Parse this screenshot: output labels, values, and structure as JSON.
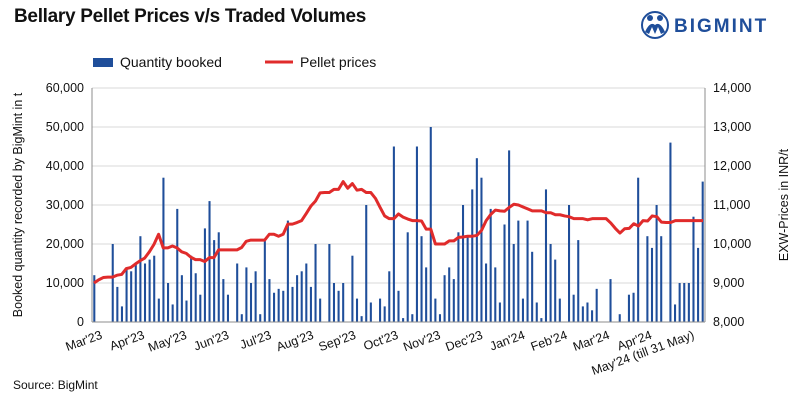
{
  "title": "Bellary Pellet Prices v/s Traded Volumes",
  "source": "Source: BigMint",
  "logo": {
    "text": "BIGMINT",
    "icon": "bigmint-people-globe-icon",
    "color": "#1f4e9a"
  },
  "colors": {
    "bars": "#1f4e9a",
    "line": "#e02b2b",
    "grid": "#d9d9d9",
    "axis": "#8c8c8c"
  },
  "chart_data": {
    "type": "bar+line",
    "grid": true,
    "legend_position": "top-left",
    "left_axis": {
      "label": "Booked quantity recorded by BigMint in t",
      "range": [
        0,
        60000
      ],
      "ticks": [
        "0",
        "10,000",
        "20,000",
        "30,000",
        "40,000",
        "50,000",
        "60,000"
      ]
    },
    "right_axis": {
      "label": "EXW-Prices in INR/t",
      "range": [
        8000,
        14000
      ],
      "ticks": [
        "8,000",
        "9,000",
        "10,000",
        "11,000",
        "12,000",
        "13,000",
        "14,000"
      ]
    },
    "x_labels": [
      "Mar'23",
      "Apr'23",
      "May'23",
      "Jun'23",
      "Jul'23",
      "Aug'23",
      "Sep'23",
      "Oct'23",
      "Nov'23",
      "Dec'23",
      "Jan'24",
      "Feb'24",
      "Mar'24",
      "Apr'24",
      "May'24 (till 31 May)"
    ],
    "series": [
      {
        "name": "Quantity booked",
        "type": "bar",
        "axis": "left",
        "values": [
          12000,
          0,
          0,
          0,
          20000,
          9000,
          4000,
          14000,
          13000,
          15000,
          22000,
          15000,
          16000,
          17000,
          6000,
          37000,
          10000,
          4500,
          29000,
          12000,
          5500,
          17000,
          12500,
          7000,
          24000,
          31000,
          21000,
          23000,
          11000,
          7000,
          0,
          15000,
          2000,
          14000,
          10000,
          13000,
          2000,
          21000,
          11000,
          7500,
          8500,
          8000,
          26000,
          9000,
          12000,
          13000,
          15000,
          9000,
          20000,
          6000,
          0,
          20000,
          10000,
          8000,
          10000,
          0,
          17000,
          6000,
          1500,
          30000,
          5000,
          0,
          6000,
          4000,
          13000,
          45000,
          8000,
          1000,
          23000,
          2000,
          45000,
          22000,
          14000,
          50000,
          6000,
          2000,
          12000,
          14000,
          11000,
          23000,
          30000,
          22000,
          34000,
          42000,
          37000,
          15000,
          29000,
          14000,
          5000,
          25000,
          44000,
          20000,
          26000,
          6000,
          26000,
          18000,
          5000,
          1000,
          34000,
          20000,
          16000,
          6000,
          0,
          30000,
          7000,
          21000,
          4000,
          5000,
          3000,
          8500,
          0,
          0,
          11000,
          0,
          2000,
          0,
          7000,
          7500,
          37000,
          0,
          22000,
          19000,
          30000,
          22000,
          0,
          46000,
          4500,
          10000,
          10000,
          10000,
          27000,
          19000,
          36000
        ],
        "color": "#1f4e9a"
      },
      {
        "name": "Pellet prices",
        "type": "line",
        "axis": "right",
        "values": [
          9000,
          9080,
          9140,
          9150,
          9150,
          9200,
          9220,
          9370,
          9400,
          9490,
          9570,
          9640,
          9800,
          9990,
          10250,
          9900,
          9900,
          9950,
          9900,
          9800,
          9760,
          9660,
          9600,
          9600,
          9550,
          9650,
          9650,
          9850,
          9850,
          9850,
          9850,
          9850,
          9910,
          10070,
          10100,
          10100,
          10100,
          10100,
          10250,
          10250,
          10200,
          10250,
          10510,
          10510,
          10550,
          10600,
          10780,
          10970,
          11100,
          11310,
          11320,
          11320,
          11400,
          11400,
          11600,
          11430,
          11550,
          11380,
          11400,
          11320,
          11320,
          11170,
          10940,
          10720,
          10650,
          10650,
          10770,
          10690,
          10640,
          10600,
          10600,
          10590,
          10380,
          10380,
          10000,
          10000,
          10000,
          10080,
          10080,
          10170,
          10180,
          10200,
          10200,
          10220,
          10350,
          10600,
          10760,
          10870,
          10850,
          10840,
          10940,
          11020,
          11000,
          10950,
          10900,
          10850,
          10850,
          10850,
          10800,
          10800,
          10750,
          10750,
          10720,
          10700,
          10650,
          10650,
          10650,
          10620,
          10650,
          10650,
          10650,
          10650,
          10540,
          10400,
          10280,
          10390,
          10400,
          10520,
          10460,
          10600,
          10590,
          10720,
          10700,
          10560,
          10550,
          10550,
          10600,
          10600,
          10600,
          10600,
          10600,
          10600,
          10600
        ],
        "color": "#e02b2b"
      }
    ]
  }
}
